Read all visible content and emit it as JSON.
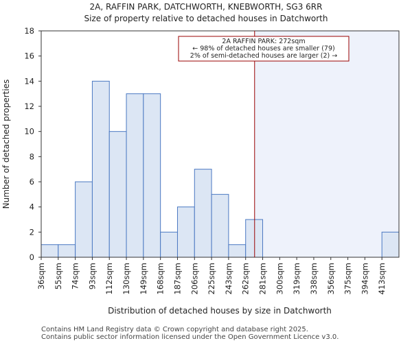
{
  "chart_data": {
    "type": "bar",
    "title_lines": [
      "2A, RAFFIN PARK, DATCHWORTH, KNEBWORTH, SG3 6RR",
      "Size of property relative to detached houses in Datchworth"
    ],
    "xlabel": "Distribution of detached houses by size in Datchworth",
    "ylabel": "Number of detached properties",
    "categories": [
      "36sqm",
      "55sqm",
      "74sqm",
      "93sqm",
      "112sqm",
      "130sqm",
      "149sqm",
      "168sqm",
      "187sqm",
      "206sqm",
      "225sqm",
      "243sqm",
      "262sqm",
      "281sqm",
      "300sqm",
      "319sqm",
      "338sqm",
      "356sqm",
      "375sqm",
      "394sqm",
      "413sqm"
    ],
    "values": [
      1,
      1,
      6,
      14,
      10,
      13,
      13,
      2,
      4,
      7,
      5,
      1,
      3,
      0,
      0,
      0,
      0,
      0,
      0,
      0,
      2
    ],
    "ylim": [
      0,
      18
    ],
    "yticks": [
      0,
      2,
      4,
      6,
      8,
      10,
      12,
      14,
      16,
      18
    ],
    "grid": false,
    "bar_color": "#dce6f4",
    "bar_edge_color": "#4a78c2",
    "marker": {
      "value_sqm": 272,
      "line_color": "#990000"
    },
    "shade_color": "#eef2fb",
    "annotation": {
      "lines": [
        "2A RAFFIN PARK: 272sqm",
        "← 98% of detached houses are smaller (79)",
        "2% of semi-detached houses are larger (2) →"
      ],
      "border_color": "#990000"
    },
    "footer_lines": [
      "Contains HM Land Registry data © Crown copyright and database right 2025.",
      "Contains public sector information licensed under the Open Government Licence v3.0."
    ]
  }
}
